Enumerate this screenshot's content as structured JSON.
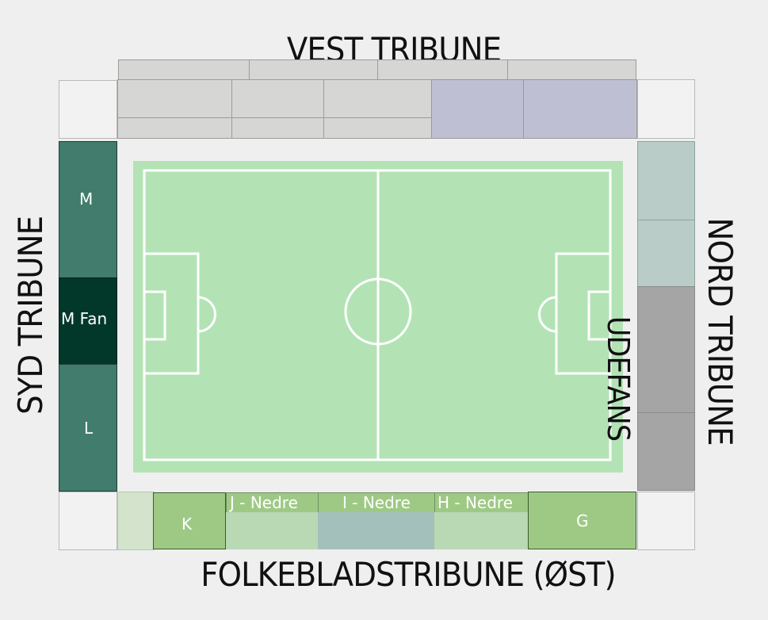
{
  "tribunes": {
    "west": "VEST TRIBUNE",
    "south": "SYD TRIBUNE",
    "north": "NORD TRIBUNE",
    "east": "FOLKEBLADSTRIBUNE (ØST)"
  },
  "sections": {
    "south_m": "M",
    "south_m_fan": "M Fan",
    "south_l": "L",
    "east_k": "K",
    "east_j": "J - Nedre",
    "east_i": "I - Nedre",
    "east_h": "H - Nedre",
    "east_g": "G",
    "away": "UDEFANS"
  },
  "colors": {
    "pitch": "#b3e3b5",
    "pitch_lines": "#ffffff",
    "south_stand": "#417c6c",
    "south_fan": "#02382a",
    "north_upper": "#b9ccc7",
    "north_away": "#a5a5a5",
    "west_grey": "#d6d6d4",
    "west_purple": "#bfbfd4",
    "east_green": "#9ec985",
    "east_light": "#b9d8b4",
    "east_teal": "#a4c0bb"
  }
}
